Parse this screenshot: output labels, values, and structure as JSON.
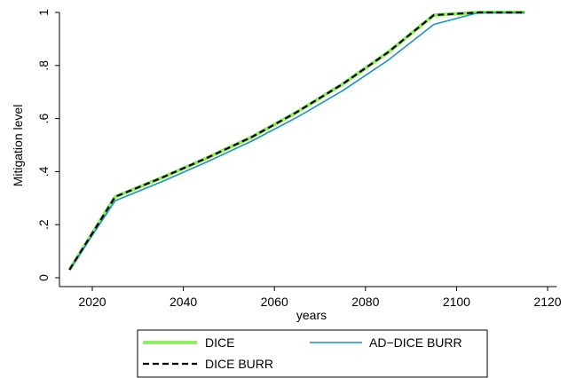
{
  "chart_data": {
    "type": "line",
    "xlabel": "years",
    "ylabel": "Mitigation level",
    "xlim": [
      2012,
      2122
    ],
    "ylim": [
      0,
      1
    ],
    "xticks": [
      2020,
      2040,
      2060,
      2080,
      2100,
      2120
    ],
    "yticks": [
      0,
      0.2,
      0.4,
      0.6,
      0.8,
      1
    ],
    "ytick_labels": [
      "0",
      ".2",
      ".4",
      ".6",
      ".8",
      "1"
    ],
    "grid": false,
    "legend_position": "bottom",
    "x": [
      2015,
      2025,
      2035,
      2045,
      2055,
      2065,
      2075,
      2085,
      2095,
      2105,
      2115
    ],
    "series": [
      {
        "name": "DICE",
        "color": "#90ee60",
        "style": "solid",
        "values": [
          0.03,
          0.305,
          0.375,
          0.45,
          0.53,
          0.625,
          0.73,
          0.85,
          0.99,
          1.0,
          1.0
        ]
      },
      {
        "name": "AD−DICE BURR",
        "color": "#1f8fc7",
        "style": "solid",
        "values": [
          0.03,
          0.29,
          0.36,
          0.435,
          0.515,
          0.605,
          0.705,
          0.82,
          0.955,
          1.0,
          1.0
        ]
      },
      {
        "name": "DICE BURR",
        "color": "#000000",
        "style": "dashed",
        "values": [
          0.03,
          0.305,
          0.375,
          0.45,
          0.53,
          0.625,
          0.73,
          0.85,
          0.99,
          1.0,
          1.0
        ]
      }
    ]
  }
}
